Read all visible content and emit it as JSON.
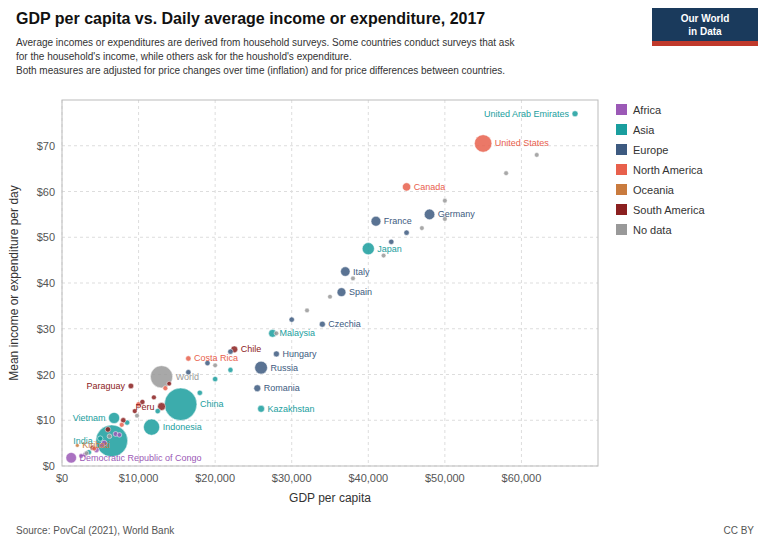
{
  "chart_data": {
    "type": "scatter",
    "title": "GDP per capita vs. Daily average income or expenditure, 2017",
    "subtitle": [
      "Average incomes or expenditures are derived from household surveys. Some countries conduct surveys that ask",
      "for the household's income, while others ask for the houshold's expenditure.",
      " Both measures are adjusted for price changes over time (inflation) and for price differences between countries."
    ],
    "xlabel": "GDP per capita",
    "ylabel": "Mean income or expenditure per day",
    "source": "Source: PovCal (2021), World Bank",
    "credit": "CC BY",
    "logo": [
      "Our World",
      "in Data"
    ],
    "grid": true,
    "legend": "right",
    "xlim": [
      0,
      70000
    ],
    "ylim": [
      0,
      80
    ],
    "xticks": [
      {
        "value": 0,
        "label": "$0"
      },
      {
        "value": 10000,
        "label": "$10,000"
      },
      {
        "value": 20000,
        "label": "$20,000"
      },
      {
        "value": 30000,
        "label": "$30,000"
      },
      {
        "value": 40000,
        "label": "$40,000"
      },
      {
        "value": 50000,
        "label": "$50,000"
      },
      {
        "value": 60000,
        "label": "$60,000"
      }
    ],
    "yticks": [
      {
        "value": 0,
        "label": "$0"
      },
      {
        "value": 10,
        "label": "$10"
      },
      {
        "value": 20,
        "label": "$20"
      },
      {
        "value": 30,
        "label": "$30"
      },
      {
        "value": 40,
        "label": "$40"
      },
      {
        "value": 50,
        "label": "$50"
      },
      {
        "value": 60,
        "label": "$60"
      },
      {
        "value": 70,
        "label": "$70"
      }
    ],
    "series": [
      {
        "name": "Africa",
        "color": "#9B59B6",
        "x": [
          1200,
          3000,
          4500,
          5500,
          7000,
          2500,
          5200,
          7500
        ],
        "values": [
          1.8,
          2.5,
          3.5,
          5.0,
          7.0,
          2.2,
          4.5,
          6.8
        ],
        "sizes": [
          84,
          2,
          5,
          8,
          3,
          2,
          2,
          2
        ],
        "labels": [
          "Democratic Republic of Congo",
          null,
          null,
          null,
          null,
          null,
          null,
          null
        ]
      },
      {
        "name": "Asia",
        "color": "#1A9E9E",
        "x": [
          6500,
          6800,
          11700,
          15500,
          26000,
          27500,
          40000,
          67000,
          3500,
          5000,
          8500,
          12500,
          18000,
          20000,
          22000
        ],
        "values": [
          5.5,
          10.5,
          8.5,
          13.5,
          12.5,
          29.0,
          47.5,
          77.0,
          3.0,
          6.0,
          9.5,
          12.0,
          16.0,
          19.0,
          21.0
        ],
        "sizes": [
          1380,
          97,
          274,
          1440,
          19,
          32,
          126,
          10,
          5,
          5,
          5,
          5,
          5,
          5,
          4
        ],
        "labels": [
          "India",
          "Vietnam",
          "Indonesia",
          "China",
          "Kazakhstan",
          "Malaysia",
          "Japan",
          "United Arab Emirates",
          null,
          null,
          null,
          null,
          null,
          null,
          null
        ]
      },
      {
        "name": "Europe",
        "color": "#3D5A80",
        "x": [
          25500,
          26000,
          28000,
          34000,
          36500,
          37000,
          41000,
          48000,
          16500,
          19000,
          22000,
          30000,
          43000,
          45000
        ],
        "values": [
          17.0,
          21.5,
          24.5,
          31.0,
          38.0,
          42.5,
          53.5,
          55.0,
          20.5,
          22.5,
          25.0,
          32.0,
          49.0,
          51.0
        ],
        "sizes": [
          19,
          145,
          10,
          10,
          47,
          60,
          67,
          83,
          5,
          5,
          5,
          5,
          5,
          5
        ],
        "labels": [
          "Romania",
          "Russia",
          "Hungary",
          "Czechia",
          "Spain",
          "Italy",
          "France",
          "Germany",
          null,
          null,
          null,
          null,
          null,
          null
        ]
      },
      {
        "name": "North America",
        "color": "#E8604C",
        "x": [
          16500,
          45000,
          55000,
          4200,
          7800,
          10000,
          13500
        ],
        "values": [
          23.5,
          61.0,
          70.5,
          3.8,
          9.0,
          13.5,
          17.0
        ],
        "sizes": [
          5,
          38,
          330,
          2,
          3,
          4,
          3
        ],
        "labels": [
          "Costa Rica",
          "Canada",
          "United States",
          null,
          null,
          null,
          null
        ]
      },
      {
        "name": "Oceania",
        "color": "#C97B3E",
        "x": [
          2000
        ],
        "values": [
          4.5
        ],
        "sizes": [
          0.12
        ],
        "labels": [
          "Kiribati"
        ]
      },
      {
        "name": "South America",
        "color": "#8B2020",
        "x": [
          13000,
          9000,
          22500,
          4000,
          6000,
          8000,
          9500,
          10500,
          12000,
          14000
        ],
        "values": [
          13.0,
          17.5,
          25.5,
          4.0,
          8.0,
          10.0,
          12.0,
          14.0,
          15.0,
          18.0
        ],
        "sizes": [
          32,
          7,
          19,
          4,
          6,
          5,
          3,
          4,
          3,
          2
        ],
        "labels": [
          "Peru",
          "Paraguay",
          "Chile",
          null,
          null,
          null,
          null,
          null,
          null,
          null
        ]
      },
      {
        "name": "No data",
        "color": "#999999",
        "x": [
          13000,
          3200,
          6200,
          9800,
          20000,
          28000,
          32000,
          35000,
          38000,
          42000,
          47000,
          50000,
          58000,
          62000,
          50000
        ],
        "values": [
          19.5,
          2.8,
          6.5,
          11.0,
          22.0,
          29.0,
          34.0,
          37.0,
          41.0,
          46.0,
          52.0,
          54.0,
          64.0,
          68.0,
          58.0
        ],
        "sizes": [
          600,
          2,
          2,
          2,
          2,
          2,
          2,
          2,
          2,
          2,
          2,
          2,
          2,
          2,
          2
        ],
        "labels": [
          "World",
          null,
          null,
          null,
          null,
          null,
          null,
          null,
          null,
          null,
          null,
          null,
          null,
          null,
          null
        ]
      }
    ]
  }
}
